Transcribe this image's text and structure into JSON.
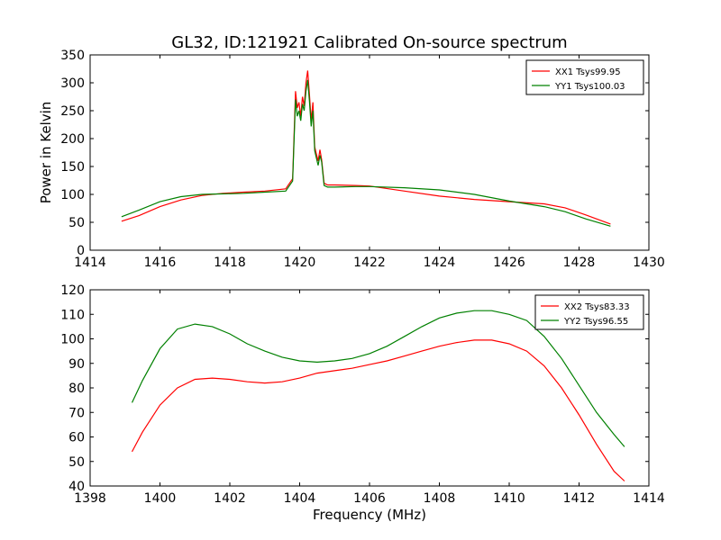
{
  "title": "GL32, ID:121921 Calibrated On-source spectrum",
  "colors": {
    "red": "#ff0000",
    "green": "#008000"
  },
  "chart_data": [
    {
      "type": "line",
      "xlabel": "",
      "ylabel": "Power in Kelvin",
      "xlim": [
        1414,
        1430
      ],
      "ylim": [
        0,
        350
      ],
      "xticks": [
        1414,
        1416,
        1418,
        1420,
        1422,
        1424,
        1426,
        1428,
        1430
      ],
      "yticks": [
        0,
        50,
        100,
        150,
        200,
        250,
        300,
        350
      ],
      "legend_position": "top-right",
      "grid": false,
      "series": [
        {
          "name": "XX1 Tsys99.95",
          "color": "red",
          "x": [
            1414.9,
            1415.4,
            1416.0,
            1416.6,
            1417.2,
            1417.8,
            1418.4,
            1419.0,
            1419.6,
            1419.8,
            1419.88,
            1419.93,
            1419.98,
            1420.03,
            1420.08,
            1420.13,
            1420.18,
            1420.23,
            1420.28,
            1420.33,
            1420.38,
            1420.43,
            1420.48,
            1420.53,
            1420.58,
            1420.63,
            1420.7,
            1420.8,
            1421.0,
            1421.6,
            1422.0,
            1423.0,
            1424.0,
            1425.0,
            1426.0,
            1427.0,
            1427.6,
            1428.2,
            1428.9
          ],
          "y": [
            52,
            62,
            78,
            90,
            98,
            102,
            104,
            106,
            110,
            128,
            285,
            255,
            265,
            240,
            275,
            258,
            300,
            322,
            280,
            232,
            265,
            185,
            172,
            160,
            180,
            162,
            120,
            117,
            117,
            116,
            115,
            106,
            97,
            91,
            87,
            83,
            76,
            63,
            47
          ]
        },
        {
          "name": "YY1 Tsys100.03",
          "color": "green",
          "x": [
            1414.9,
            1415.4,
            1416.0,
            1416.6,
            1417.2,
            1417.8,
            1418.4,
            1419.0,
            1419.6,
            1419.8,
            1419.88,
            1419.93,
            1419.98,
            1420.03,
            1420.08,
            1420.13,
            1420.18,
            1420.23,
            1420.28,
            1420.33,
            1420.38,
            1420.43,
            1420.48,
            1420.53,
            1420.58,
            1420.63,
            1420.7,
            1420.8,
            1421.0,
            1421.6,
            1422.0,
            1423.0,
            1424.0,
            1425.0,
            1426.0,
            1427.0,
            1427.6,
            1428.2,
            1428.9
          ],
          "y": [
            60,
            72,
            87,
            96,
            100,
            101,
            102,
            104,
            106,
            124,
            270,
            240,
            250,
            232,
            262,
            250,
            285,
            305,
            268,
            222,
            250,
            178,
            165,
            152,
            170,
            158,
            116,
            113,
            113,
            114,
            114,
            112,
            108,
            100,
            88,
            78,
            69,
            56,
            43
          ]
        }
      ]
    },
    {
      "type": "line",
      "xlabel": "Frequency (MHz)",
      "ylabel": "",
      "xlim": [
        1398,
        1414
      ],
      "ylim": [
        40,
        120
      ],
      "xticks": [
        1398,
        1400,
        1402,
        1404,
        1406,
        1408,
        1410,
        1412,
        1414
      ],
      "yticks": [
        40,
        50,
        60,
        70,
        80,
        90,
        100,
        110,
        120
      ],
      "legend_position": "top-right",
      "grid": false,
      "series": [
        {
          "name": "XX2 Tsys83.33",
          "color": "red",
          "x": [
            1399.2,
            1399.5,
            1400.0,
            1400.5,
            1401.0,
            1401.5,
            1402.0,
            1402.5,
            1403.0,
            1403.5,
            1404.0,
            1404.5,
            1405.0,
            1405.5,
            1406.0,
            1406.5,
            1407.0,
            1407.5,
            1408.0,
            1408.5,
            1409.0,
            1409.5,
            1410.0,
            1410.5,
            1411.0,
            1411.5,
            1412.0,
            1412.5,
            1413.0,
            1413.3
          ],
          "y": [
            54,
            62,
            73,
            80,
            83.5,
            84,
            83.5,
            82.5,
            82,
            82.5,
            84,
            86,
            87,
            88,
            89.5,
            91,
            93,
            95,
            97,
            98.5,
            99.5,
            99.5,
            98,
            95,
            89,
            80,
            69,
            57,
            46,
            42
          ]
        },
        {
          "name": "YY2 Tsys96.55",
          "color": "green",
          "x": [
            1399.2,
            1399.5,
            1400.0,
            1400.5,
            1401.0,
            1401.5,
            1402.0,
            1402.5,
            1403.0,
            1403.5,
            1404.0,
            1404.5,
            1405.0,
            1405.5,
            1406.0,
            1406.5,
            1407.0,
            1407.5,
            1408.0,
            1408.5,
            1409.0,
            1409.5,
            1410.0,
            1410.5,
            1411.0,
            1411.5,
            1412.0,
            1412.5,
            1413.0,
            1413.3
          ],
          "y": [
            74,
            83,
            96,
            104,
            106,
            105,
            102,
            98,
            95,
            92.5,
            91,
            90.5,
            91,
            92,
            94,
            97,
            101,
            105,
            108.5,
            110.5,
            111.5,
            111.5,
            110,
            107.5,
            101,
            92,
            81,
            70,
            61,
            56
          ]
        }
      ]
    }
  ]
}
